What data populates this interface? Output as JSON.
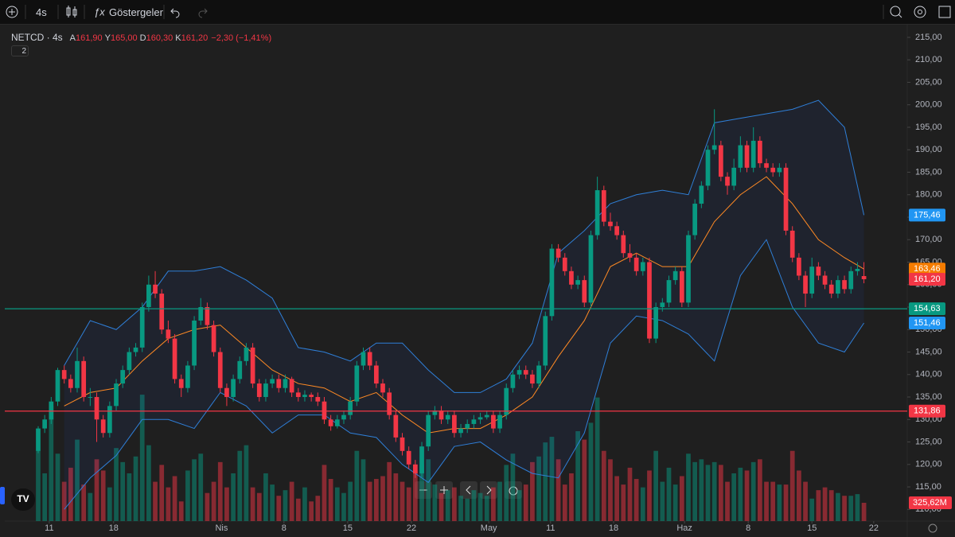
{
  "toolbar": {
    "interval": "4s",
    "indicators": "Göstergeler"
  },
  "chart_data": {
    "type": "candlestick",
    "legend": {
      "symbol": "NETCD · 4s",
      "items": [
        {
          "key": "A",
          "value": "161,90"
        },
        {
          "key": "Y",
          "value": "165,00"
        },
        {
          "key": "D",
          "value": "160,30"
        },
        {
          "key": "K",
          "value": "161,20"
        }
      ],
      "change": "−2,30 (−1,41%)"
    },
    "indicator_count": 2,
    "up_color": "#089981",
    "down_color": "#f23645",
    "volume_up_color": "rgba(8,153,129,0.5)",
    "volume_down_color": "rgba(242,54,69,0.5)",
    "ohlc": [
      [
        123,
        128.5,
        122.5,
        128
      ],
      [
        128,
        131,
        127,
        130
      ],
      [
        130,
        135,
        129,
        134
      ],
      [
        134,
        141.5,
        133,
        141
      ],
      [
        141,
        142,
        138,
        139
      ],
      [
        139,
        140,
        136,
        137
      ],
      [
        137,
        146,
        136,
        143
      ],
      [
        143,
        144,
        134,
        135
      ],
      [
        135,
        137,
        133,
        135
      ],
      [
        135,
        136,
        125,
        130
      ],
      [
        130,
        131,
        126,
        127
      ],
      [
        127,
        134,
        126,
        133
      ],
      [
        133,
        139,
        132,
        138
      ],
      [
        138,
        142,
        137,
        141
      ],
      [
        141,
        146,
        140,
        145
      ],
      [
        145,
        147,
        144,
        146
      ],
      [
        146,
        156,
        145,
        155
      ],
      [
        155,
        162,
        154,
        160
      ],
      [
        160,
        163,
        157,
        158
      ],
      [
        158,
        159,
        149,
        150
      ],
      [
        150,
        152,
        147,
        148
      ],
      [
        148,
        149,
        138,
        139
      ],
      [
        139,
        140,
        135,
        137
      ],
      [
        137,
        143,
        136,
        142
      ],
      [
        142,
        153,
        141,
        152
      ],
      [
        152,
        157,
        151,
        155
      ],
      [
        155,
        156,
        150,
        151
      ],
      [
        151,
        152,
        144,
        145
      ],
      [
        145,
        146,
        136,
        137
      ],
      [
        137,
        138,
        133,
        135
      ],
      [
        135,
        140,
        134,
        139
      ],
      [
        139,
        144,
        138,
        143
      ],
      [
        143,
        147,
        142,
        146
      ],
      [
        146,
        147,
        137,
        138
      ],
      [
        138,
        139,
        134,
        135
      ],
      [
        135,
        139,
        134,
        138
      ],
      [
        138,
        140,
        137,
        139
      ],
      [
        139,
        140,
        136,
        137
      ],
      [
        137,
        140,
        136,
        139
      ],
      [
        139,
        139.5,
        135,
        136
      ],
      [
        136,
        137,
        134,
        135
      ],
      [
        135,
        136.5,
        134,
        135.5
      ],
      [
        135.5,
        136,
        134,
        135
      ],
      [
        135,
        136,
        133,
        134
      ],
      [
        134,
        135,
        129,
        130
      ],
      [
        130,
        131,
        127.5,
        128.5
      ],
      [
        128.5,
        131,
        128,
        130
      ],
      [
        130,
        132,
        129,
        131
      ],
      [
        131,
        135,
        130,
        134
      ],
      [
        134,
        143,
        133,
        142
      ],
      [
        142,
        146,
        141,
        145
      ],
      [
        145,
        146,
        141,
        142
      ],
      [
        142,
        143,
        137,
        138
      ],
      [
        138,
        139,
        135,
        136
      ],
      [
        136,
        137,
        130,
        131
      ],
      [
        131,
        132,
        125,
        126
      ],
      [
        126,
        127,
        122,
        123
      ],
      [
        123,
        124,
        119,
        120
      ],
      [
        120,
        121,
        117,
        118
      ],
      [
        118,
        125,
        117,
        124
      ],
      [
        124,
        132,
        123,
        131
      ],
      [
        131,
        133,
        130,
        132
      ],
      [
        132,
        133,
        129,
        130
      ],
      [
        130,
        132,
        129,
        131
      ],
      [
        131,
        132,
        126,
        127
      ],
      [
        127,
        129,
        126,
        128
      ],
      [
        128,
        130,
        127,
        129
      ],
      [
        129,
        131,
        128,
        130
      ],
      [
        130,
        131.5,
        129,
        130.5
      ],
      [
        130.5,
        132,
        130,
        131
      ],
      [
        131,
        132,
        127,
        128
      ],
      [
        128,
        132,
        127,
        131
      ],
      [
        131,
        138,
        130,
        137
      ],
      [
        137,
        141,
        136,
        140
      ],
      [
        140,
        142,
        139,
        141
      ],
      [
        141,
        142,
        139,
        140
      ],
      [
        140,
        141,
        137,
        138
      ],
      [
        138,
        143,
        137,
        142
      ],
      [
        142,
        154,
        141,
        153
      ],
      [
        153,
        169,
        152,
        168
      ],
      [
        168,
        169,
        165,
        166
      ],
      [
        166,
        167,
        162,
        163
      ],
      [
        163,
        164,
        159,
        160
      ],
      [
        160,
        162,
        159,
        161
      ],
      [
        161,
        162,
        155,
        156
      ],
      [
        156,
        172,
        155,
        171
      ],
      [
        171,
        184,
        170,
        181
      ],
      [
        181,
        182,
        173,
        174
      ],
      [
        174,
        176,
        172,
        173
      ],
      [
        173,
        174,
        170,
        171
      ],
      [
        171,
        172,
        166,
        167
      ],
      [
        167,
        169,
        165,
        166
      ],
      [
        166,
        167,
        162,
        163
      ],
      [
        163,
        166,
        162,
        165
      ],
      [
        165,
        166,
        147,
        148
      ],
      [
        148,
        156,
        147,
        155
      ],
      [
        155,
        157,
        154,
        156
      ],
      [
        156,
        162,
        155,
        161
      ],
      [
        161,
        164,
        160,
        163
      ],
      [
        163,
        164,
        155,
        156
      ],
      [
        156,
        172,
        155,
        171
      ],
      [
        171,
        179,
        170,
        178
      ],
      [
        178,
        183,
        177,
        182
      ],
      [
        182,
        191,
        181,
        190
      ],
      [
        190,
        199,
        189,
        191
      ],
      [
        191,
        192,
        183,
        184
      ],
      [
        184,
        185,
        180,
        182
      ],
      [
        182,
        188,
        181,
        186
      ],
      [
        186,
        193,
        185,
        191
      ],
      [
        191,
        192,
        185,
        186
      ],
      [
        186,
        195,
        185,
        192
      ],
      [
        192,
        193,
        186,
        187
      ],
      [
        187,
        188,
        185,
        186
      ],
      [
        186,
        187,
        184,
        185
      ],
      [
        185,
        187,
        184,
        186
      ],
      [
        186,
        187,
        171,
        172
      ],
      [
        172,
        173,
        165,
        166
      ],
      [
        166,
        167,
        161,
        162
      ],
      [
        162,
        163,
        155,
        158
      ],
      [
        158,
        166,
        157,
        164
      ],
      [
        164,
        165,
        161,
        162
      ],
      [
        162,
        163,
        159,
        160
      ],
      [
        160,
        161,
        157,
        158
      ],
      [
        158,
        162,
        157,
        161
      ],
      [
        161,
        162,
        158,
        159
      ],
      [
        159,
        164,
        158,
        163
      ],
      [
        163,
        165,
        162,
        163.5
      ],
      [
        161.9,
        165,
        160.3,
        161.2
      ]
    ],
    "volume": [
      1250,
      850,
      2050,
      1200,
      700,
      950,
      1450,
      650,
      500,
      1100,
      900,
      600,
      1300,
      1050,
      850,
      1150,
      2250,
      1350,
      700,
      1000,
      600,
      800,
      350,
      900,
      1100,
      1200,
      500,
      700,
      1050,
      600,
      850,
      1250,
      1350,
      600,
      500,
      850,
      650,
      450,
      550,
      700,
      400,
      600,
      350,
      450,
      1000,
      750,
      600,
      500,
      700,
      1250,
      1100,
      700,
      750,
      800,
      1050,
      850,
      700,
      600,
      900,
      1000,
      1100,
      650,
      500,
      550,
      600,
      450,
      400,
      550,
      500,
      450,
      600,
      700,
      1000,
      1200,
      550,
      650,
      1050,
      1150,
      1400,
      1500,
      1100,
      650,
      850,
      1600,
      1450,
      1750,
      2200,
      1250,
      1100,
      800,
      650,
      950,
      750,
      600,
      900,
      1250,
      700,
      950,
      650,
      800,
      1200,
      1050,
      1100,
      1000,
      1050,
      1000,
      700,
      850,
      950,
      900,
      1050,
      1100,
      700,
      700,
      650,
      650,
      1250,
      900,
      700,
      400,
      550,
      600,
      550,
      500,
      450,
      450,
      480,
      325.62
    ],
    "volume_label": {
      "value": 325.62,
      "label": "325,62M",
      "color": "#f23645"
    },
    "volume_ylim": [
      0,
      8850
    ],
    "xlim": [
      -5.14,
      133.66
    ],
    "xticks": [
      {
        "value": 1.7,
        "label": "11"
      },
      {
        "value": 11.6,
        "label": "18"
      },
      {
        "value": 28.2,
        "label": "Nis"
      },
      {
        "value": 37.8,
        "label": "8"
      },
      {
        "value": 47.6,
        "label": "15"
      },
      {
        "value": 57.4,
        "label": "22"
      },
      {
        "value": 69.3,
        "label": "May"
      },
      {
        "value": 78.8,
        "label": "11"
      },
      {
        "value": 88.5,
        "label": "18"
      },
      {
        "value": 99.4,
        "label": "Haz"
      },
      {
        "value": 109.2,
        "label": "8"
      },
      {
        "value": 119,
        "label": "15"
      },
      {
        "value": 128.5,
        "label": "22"
      }
    ],
    "ylim": [
      107.4,
      218
    ],
    "yticks": [
      {
        "value": 110,
        "label": "110,00"
      },
      {
        "value": 115,
        "label": "115,00"
      },
      {
        "value": 120,
        "label": "120,00"
      },
      {
        "value": 125,
        "label": "125,00"
      },
      {
        "value": 130,
        "label": "130,00"
      },
      {
        "value": 135,
        "label": "135,00"
      },
      {
        "value": 140,
        "label": "140,00"
      },
      {
        "value": 145,
        "label": "145,00"
      },
      {
        "value": 150,
        "label": "150,00"
      },
      {
        "value": 155,
        "label": "155,00"
      },
      {
        "value": 160,
        "label": "160,00"
      },
      {
        "value": 165,
        "label": "165,00"
      },
      {
        "value": 170,
        "label": "170,00"
      },
      {
        "value": 175,
        "label": "175,00"
      },
      {
        "value": 180,
        "label": "180,00"
      },
      {
        "value": 185,
        "label": "185,00"
      },
      {
        "value": 190,
        "label": "190,00"
      },
      {
        "value": 195,
        "label": "195,00"
      },
      {
        "value": 200,
        "label": "200,00"
      },
      {
        "value": 205,
        "label": "205,00"
      },
      {
        "value": 210,
        "label": "210,00"
      },
      {
        "value": 215,
        "label": "215,00"
      }
    ],
    "bands": {
      "x": [
        4,
        8,
        12,
        16,
        20,
        24,
        28,
        32,
        36,
        40,
        44,
        48,
        52,
        56,
        60,
        64,
        68,
        72,
        76,
        80,
        84,
        88,
        92,
        96,
        100,
        104,
        108,
        112,
        116,
        120,
        124,
        127
      ],
      "upper": [
        142,
        152,
        150,
        155,
        163,
        163,
        164,
        161,
        157,
        146,
        145,
        143,
        147,
        147,
        141,
        136,
        136,
        139,
        147,
        167,
        172,
        178,
        180,
        181,
        180,
        196,
        197,
        198,
        199,
        201,
        195,
        175.46
      ],
      "middle": [
        133,
        136,
        137,
        143,
        148,
        150,
        151,
        146,
        141,
        138,
        137,
        134,
        136,
        131,
        127,
        128,
        128,
        131,
        135,
        144,
        152,
        164,
        167,
        164,
        164,
        174,
        180,
        184,
        178,
        170,
        166,
        163.46
      ],
      "lower": [
        110,
        117,
        122,
        130,
        130,
        128,
        136,
        133,
        127,
        131,
        131,
        127,
        126,
        120,
        116,
        124,
        125,
        121,
        118,
        117,
        127,
        147,
        153,
        152,
        149,
        143,
        162,
        170,
        155,
        147,
        145,
        151.46
      ],
      "band_color": "#2f7fd8",
      "middle_color": "#ff8a24",
      "fill": "rgba(41,98,255,0.07)"
    },
    "hlines": [
      {
        "value": 154.63,
        "label": "154,63",
        "color": "#089981"
      },
      {
        "value": 131.86,
        "label": "131,86",
        "color": "#f23645"
      }
    ],
    "price_labels": [
      {
        "value": 175.46,
        "label": "175,46",
        "color": "#2196f3"
      },
      {
        "value": 163.46,
        "label": "163,46",
        "color": "#f57c00"
      },
      {
        "value": 161.2,
        "label": "161,20",
        "color": "#f23645"
      },
      {
        "value": 151.46,
        "label": "151,46",
        "color": "#2196f3"
      }
    ]
  }
}
